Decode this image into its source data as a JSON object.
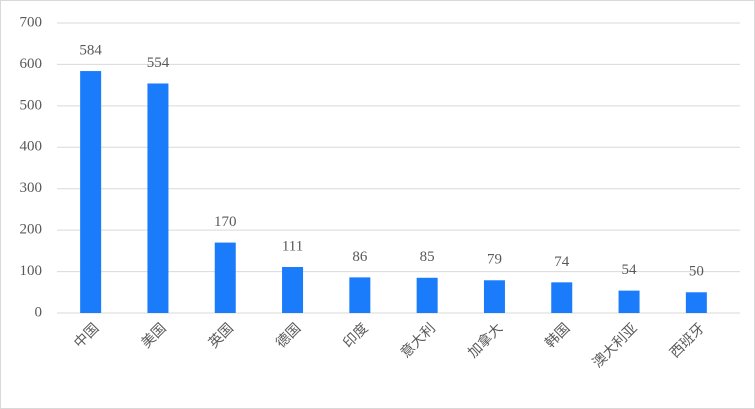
{
  "chart_data": {
    "type": "bar",
    "categories": [
      "中国",
      "美国",
      "英国",
      "德国",
      "印度",
      "意大利",
      "加拿大",
      "韩国",
      "澳大利亚",
      "西班牙"
    ],
    "values": [
      584,
      554,
      170,
      111,
      86,
      85,
      79,
      74,
      54,
      50
    ],
    "color": "#1a7cfa",
    "ylim": [
      0,
      700
    ],
    "yticks": [
      0,
      100,
      200,
      300,
      400,
      500,
      600,
      700
    ],
    "grid": true
  }
}
